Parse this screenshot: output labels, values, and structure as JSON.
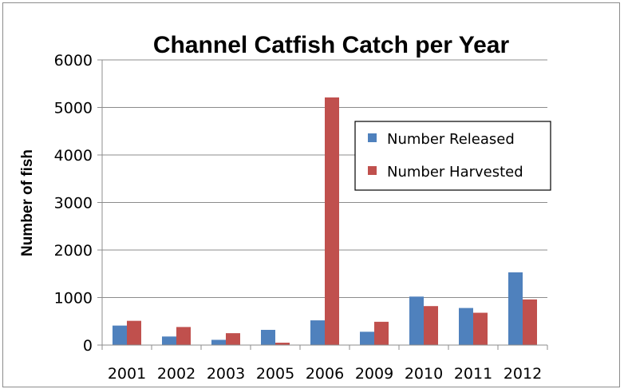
{
  "chart_data": {
    "type": "bar",
    "title": "Channel Catfish Catch per Year",
    "xlabel": "",
    "ylabel": "Number of fish",
    "categories": [
      "2001",
      "2002",
      "2003",
      "2005",
      "2006",
      "2009",
      "2010",
      "2011",
      "2012"
    ],
    "series": [
      {
        "name": "Number Released",
        "color": "#4f81bd",
        "values": [
          410,
          180,
          110,
          320,
          520,
          280,
          1020,
          780,
          1530
        ]
      },
      {
        "name": "Number Harvested",
        "color": "#c0504d",
        "values": [
          510,
          380,
          250,
          50,
          5210,
          490,
          820,
          680,
          960
        ]
      }
    ],
    "ylim": [
      0,
      6000
    ],
    "yticks": [
      "0",
      "1000",
      "2000",
      "3000",
      "4000",
      "5000",
      "6000"
    ],
    "grid": true,
    "legend_position": "right"
  }
}
